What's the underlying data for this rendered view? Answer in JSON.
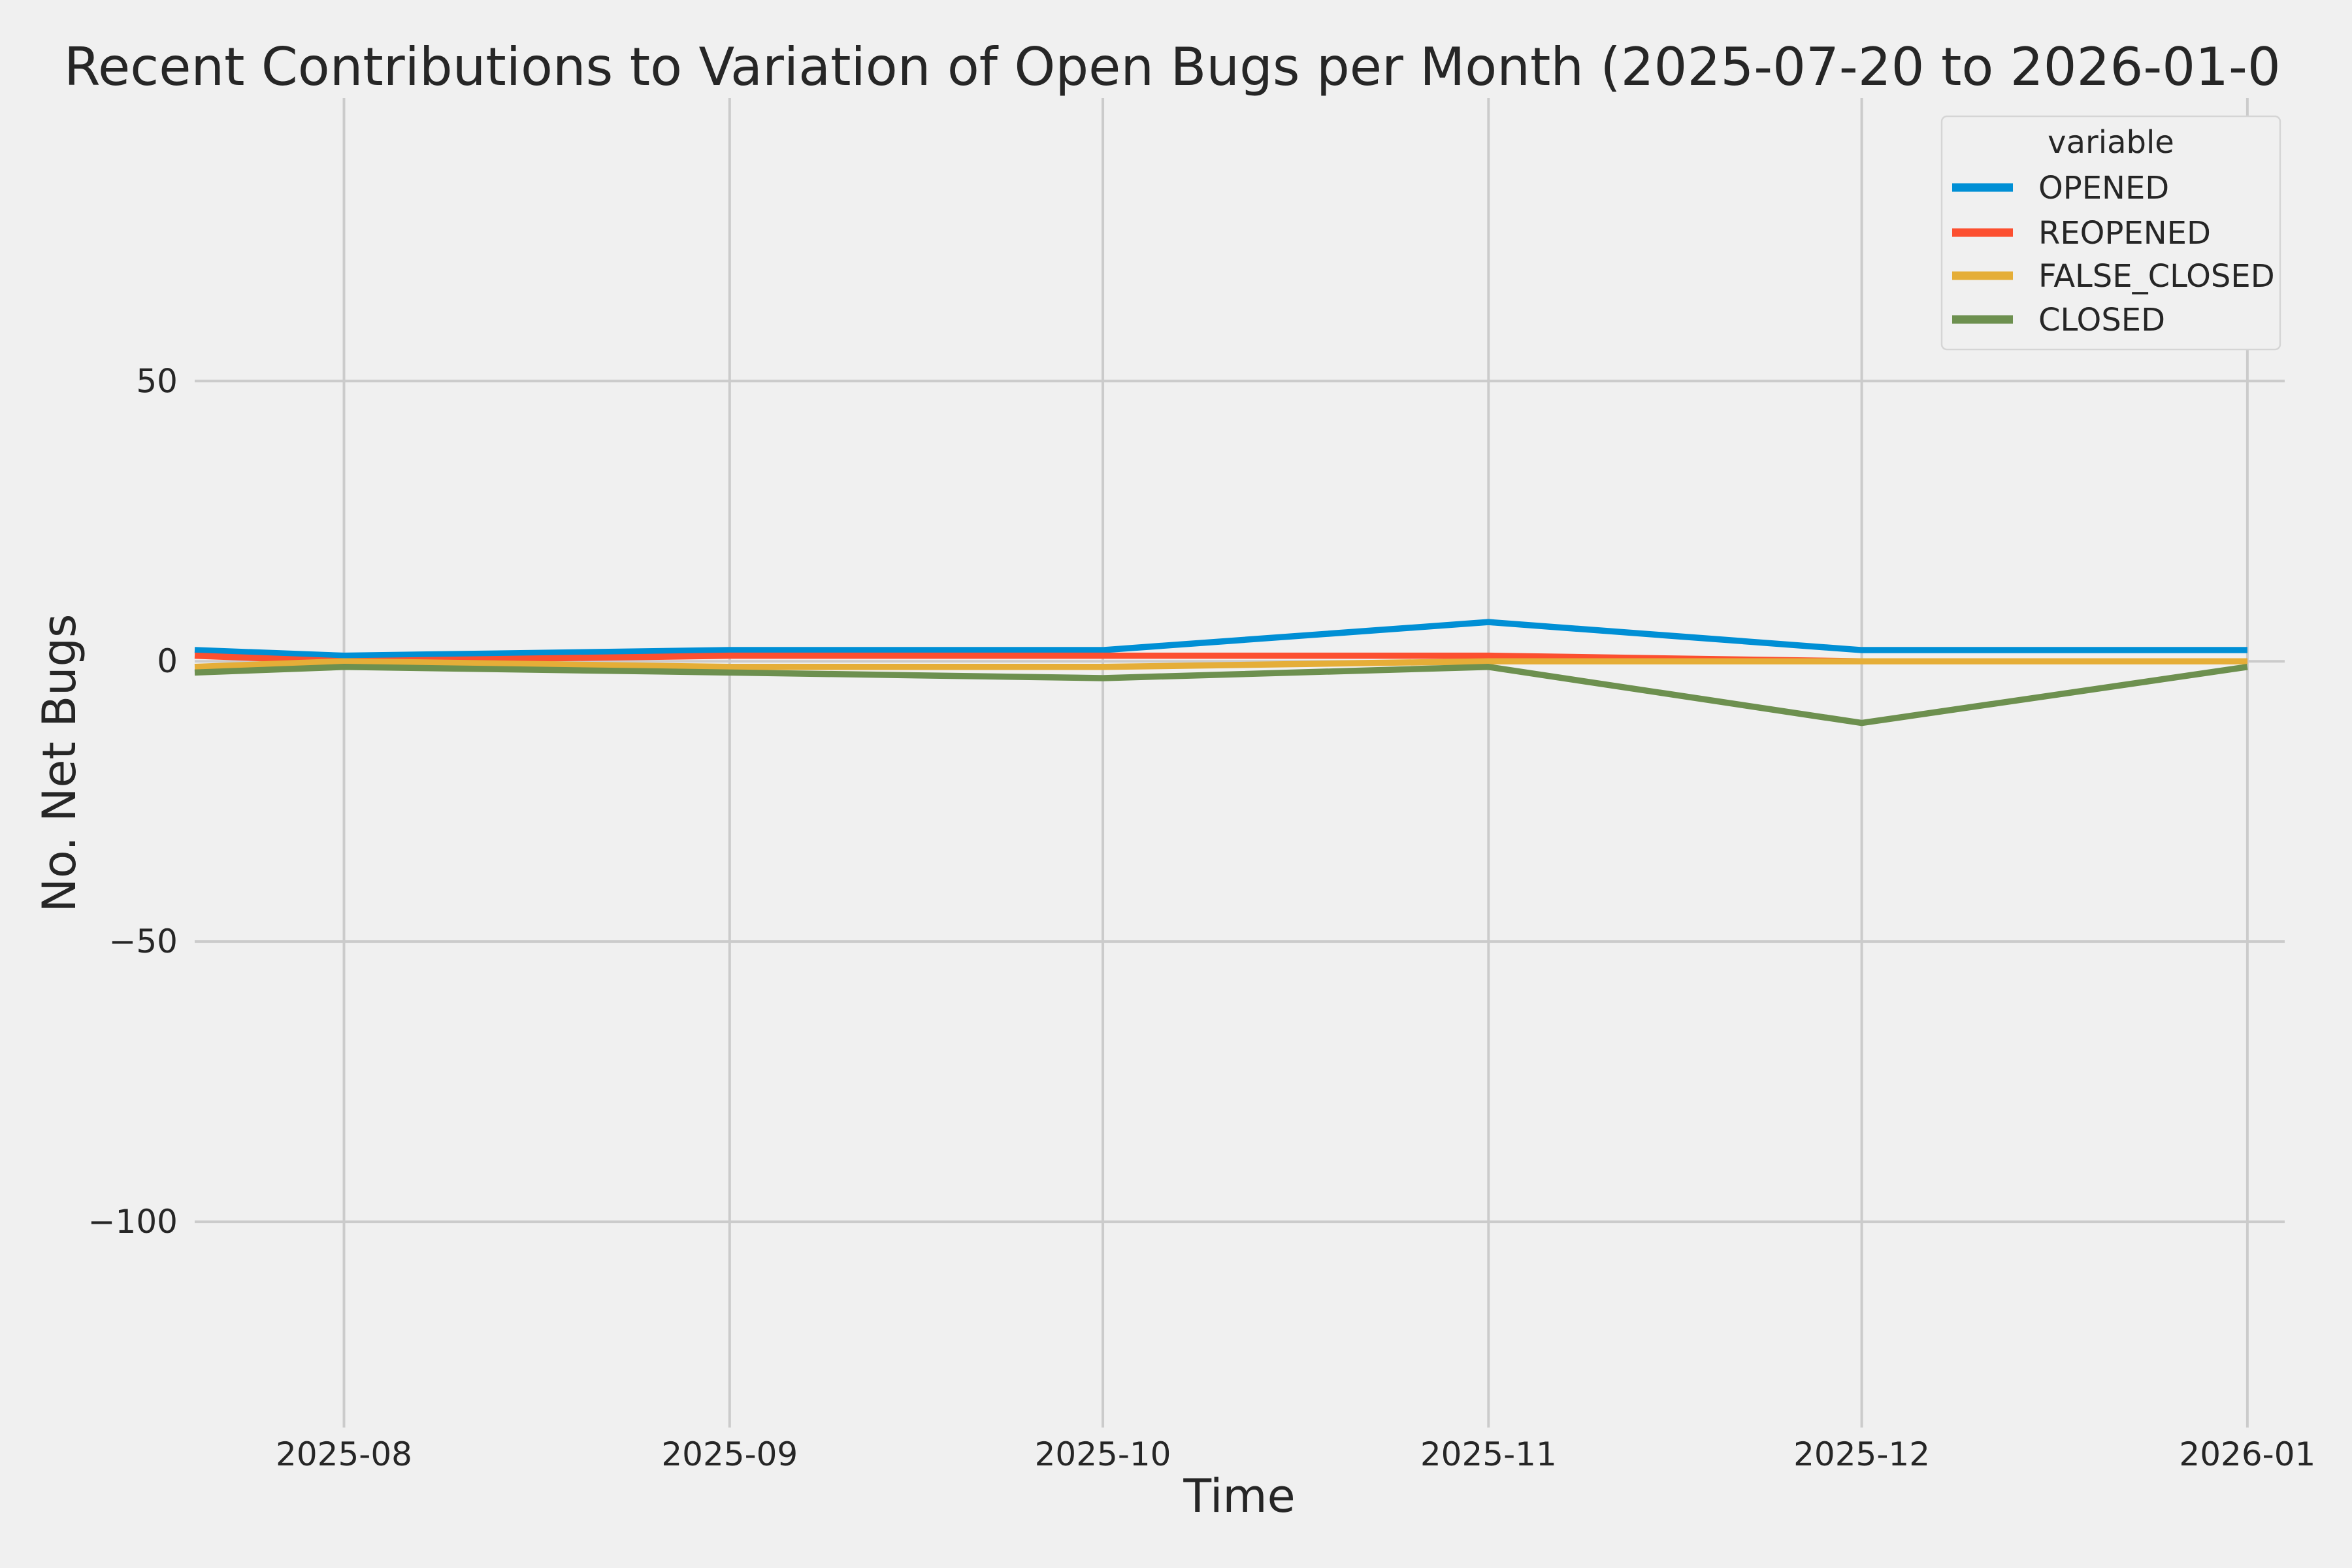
{
  "colors": {
    "background": "#f0f0f0",
    "grid": "#cbcbcb",
    "text": "#262626",
    "legend_border": "#d5d5d5"
  },
  "chart_data": {
    "type": "line",
    "title": "Recent Contributions to Variation of Open Bugs per Month (2025-07-20 to 2026-01-0",
    "xlabel": "Time",
    "ylabel": "No. Net Bugs",
    "grid": true,
    "x_unit": "days since 2025-07-20",
    "xlim_days": [
      0,
      168
    ],
    "point_day_offsets": [
      0,
      12,
      43,
      73,
      104,
      134,
      165
    ],
    "point_labels": [
      "2025-07-20",
      "2025-08",
      "2025-09",
      "2025-10",
      "2025-11",
      "2025-12",
      "2026-01"
    ],
    "x_ticks": [
      {
        "day": 12,
        "label": "2025-08"
      },
      {
        "day": 43,
        "label": "2025-09"
      },
      {
        "day": 73,
        "label": "2025-10"
      },
      {
        "day": 104,
        "label": "2025-11"
      },
      {
        "day": 134,
        "label": "2025-12"
      },
      {
        "day": 165,
        "label": "2026-01"
      }
    ],
    "ylim": [
      -136.7,
      100.5
    ],
    "y_ticks": [
      {
        "value": 50,
        "label": "50"
      },
      {
        "value": 0,
        "label": "0"
      },
      {
        "value": -50,
        "label": "−50"
      },
      {
        "value": -100,
        "label": "−100"
      }
    ],
    "legend": {
      "title": "variable",
      "position": "upper right"
    },
    "series": [
      {
        "name": "OPENED",
        "color": "#008fd5",
        "values": [
          2,
          1,
          2,
          2,
          7,
          2,
          2
        ]
      },
      {
        "name": "REOPENED",
        "color": "#fc4f30",
        "values": [
          1,
          0,
          1,
          1,
          1,
          0,
          0
        ]
      },
      {
        "name": "FALSE_CLOSED",
        "color": "#e5ae38",
        "values": [
          -1,
          0,
          -1,
          -1,
          0,
          0,
          0
        ]
      },
      {
        "name": "CLOSED",
        "color": "#6d904f",
        "values": [
          -2,
          -1,
          -2,
          -3,
          -1,
          -11,
          -1
        ]
      }
    ]
  }
}
